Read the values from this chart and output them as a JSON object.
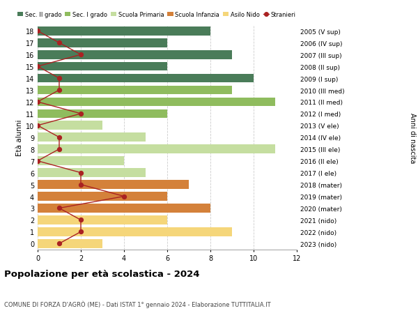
{
  "ages": [
    18,
    17,
    16,
    15,
    14,
    13,
    12,
    11,
    10,
    9,
    8,
    7,
    6,
    5,
    4,
    3,
    2,
    1,
    0
  ],
  "right_labels": [
    "2005 (V sup)",
    "2006 (IV sup)",
    "2007 (III sup)",
    "2008 (II sup)",
    "2009 (I sup)",
    "2010 (III med)",
    "2011 (II med)",
    "2012 (I med)",
    "2013 (V ele)",
    "2014 (IV ele)",
    "2015 (III ele)",
    "2016 (II ele)",
    "2017 (I ele)",
    "2018 (mater)",
    "2019 (mater)",
    "2020 (mater)",
    "2021 (nido)",
    "2022 (nido)",
    "2023 (nido)"
  ],
  "bar_values": [
    8,
    6,
    9,
    6,
    10,
    9,
    11,
    6,
    3,
    5,
    11,
    4,
    5,
    7,
    6,
    8,
    6,
    9,
    3
  ],
  "bar_colors": [
    "#4a7c59",
    "#4a7c59",
    "#4a7c59",
    "#4a7c59",
    "#4a7c59",
    "#8fbc5e",
    "#8fbc5e",
    "#8fbc5e",
    "#c5dea0",
    "#c5dea0",
    "#c5dea0",
    "#c5dea0",
    "#c5dea0",
    "#d4813a",
    "#d4813a",
    "#d4813a",
    "#f5d67a",
    "#f5d67a",
    "#f5d67a"
  ],
  "stranieri_values": [
    0,
    1,
    2,
    0,
    1,
    1,
    0,
    2,
    0,
    1,
    1,
    0,
    2,
    2,
    4,
    1,
    2,
    2,
    1
  ],
  "legend_labels": [
    "Sec. II grado",
    "Sec. I grado",
    "Scuola Primaria",
    "Scuola Infanzia",
    "Asilo Nido",
    "Stranieri"
  ],
  "legend_colors": [
    "#4a7c59",
    "#8fbc5e",
    "#c5dea0",
    "#d4813a",
    "#f5d67a",
    "#aa2222"
  ],
  "title": "Popolazione per età scolastica - 2024",
  "subtitle": "COMUNE DI FORZA D'AGRÒ (ME) - Dati ISTAT 1° gennaio 2024 - Elaborazione TUTTITALIA.IT",
  "xlabel_left": "Età alunni",
  "ylabel_right": "Anni di nascita",
  "xlim": [
    0,
    12
  ],
  "background_color": "#ffffff",
  "grid_color": "#cccccc"
}
